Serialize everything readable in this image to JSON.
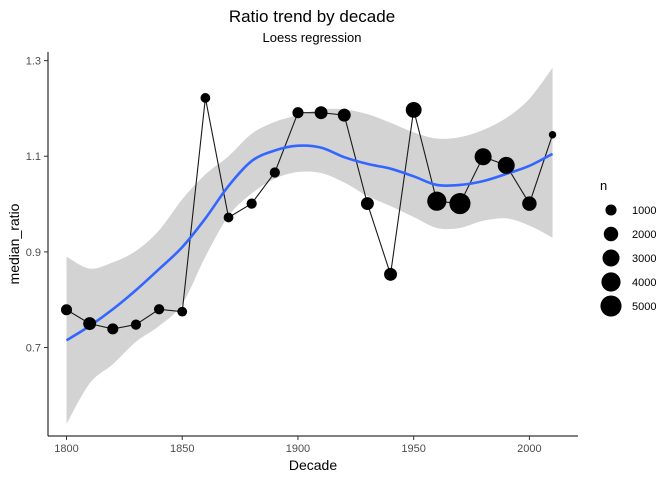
{
  "chart_data": {
    "type": "scatter",
    "title": "Ratio trend by decade",
    "subtitle": "Loess regression",
    "xlabel": "Decade",
    "ylabel": "median_ratio",
    "xlim": [
      1792,
      2021
    ],
    "ylim": [
      0.515,
      1.318
    ],
    "x_ticks": [
      1800,
      1850,
      1900,
      1950,
      2000
    ],
    "y_ticks": [
      0.7,
      0.9,
      1.1,
      1.3
    ],
    "x_tick_labels": [
      "1800",
      "1850",
      "1900",
      "1950",
      "2000"
    ],
    "y_tick_labels": [
      "0.7",
      "0.9",
      "1.1",
      "1.3"
    ],
    "grid": false,
    "points": [
      {
        "x": 1800,
        "y": 0.779,
        "n": 1000
      },
      {
        "x": 1810,
        "y": 0.75,
        "n": 1500
      },
      {
        "x": 1820,
        "y": 0.739,
        "n": 1000
      },
      {
        "x": 1830,
        "y": 0.748,
        "n": 800
      },
      {
        "x": 1840,
        "y": 0.78,
        "n": 800
      },
      {
        "x": 1850,
        "y": 0.775,
        "n": 700
      },
      {
        "x": 1860,
        "y": 1.222,
        "n": 700
      },
      {
        "x": 1870,
        "y": 0.972,
        "n": 700
      },
      {
        "x": 1880,
        "y": 1.001,
        "n": 800
      },
      {
        "x": 1890,
        "y": 1.066,
        "n": 800
      },
      {
        "x": 1900,
        "y": 1.191,
        "n": 1000
      },
      {
        "x": 1910,
        "y": 1.191,
        "n": 1500
      },
      {
        "x": 1920,
        "y": 1.186,
        "n": 1500
      },
      {
        "x": 1930,
        "y": 1.001,
        "n": 1500
      },
      {
        "x": 1940,
        "y": 0.853,
        "n": 1500
      },
      {
        "x": 1950,
        "y": 1.197,
        "n": 2500
      },
      {
        "x": 1960,
        "y": 1.006,
        "n": 4000
      },
      {
        "x": 1970,
        "y": 1.001,
        "n": 5000
      },
      {
        "x": 1980,
        "y": 1.099,
        "n": 3000
      },
      {
        "x": 1990,
        "y": 1.081,
        "n": 3000
      },
      {
        "x": 2000,
        "y": 1.001,
        "n": 2000
      },
      {
        "x": 2010,
        "y": 1.145,
        "n": 300
      }
    ],
    "smooth": {
      "method": "loess",
      "color": "#3366FF",
      "fit": [
        {
          "x": 1800,
          "y": 0.715,
          "lo": 0.54,
          "hi": 0.89
        },
        {
          "x": 1810,
          "y": 0.745,
          "lo": 0.625,
          "hi": 0.865
        },
        {
          "x": 1820,
          "y": 0.78,
          "lo": 0.665,
          "hi": 0.878
        },
        {
          "x": 1830,
          "y": 0.82,
          "lo": 0.712,
          "hi": 0.902
        },
        {
          "x": 1840,
          "y": 0.864,
          "lo": 0.745,
          "hi": 0.945
        },
        {
          "x": 1850,
          "y": 0.91,
          "lo": 0.791,
          "hi": 1.01
        },
        {
          "x": 1860,
          "y": 0.97,
          "lo": 0.89,
          "hi": 1.062
        },
        {
          "x": 1870,
          "y": 1.038,
          "lo": 0.975,
          "hi": 1.1
        },
        {
          "x": 1880,
          "y": 1.09,
          "lo": 1.022,
          "hi": 1.147
        },
        {
          "x": 1890,
          "y": 1.112,
          "lo": 1.053,
          "hi": 1.172
        },
        {
          "x": 1900,
          "y": 1.122,
          "lo": 1.067,
          "hi": 1.186
        },
        {
          "x": 1910,
          "y": 1.118,
          "lo": 1.065,
          "hi": 1.198
        },
        {
          "x": 1920,
          "y": 1.098,
          "lo": 1.045,
          "hi": 1.198
        },
        {
          "x": 1930,
          "y": 1.084,
          "lo": 1.017,
          "hi": 1.188
        },
        {
          "x": 1940,
          "y": 1.074,
          "lo": 0.996,
          "hi": 1.17
        },
        {
          "x": 1950,
          "y": 1.058,
          "lo": 0.973,
          "hi": 1.15
        },
        {
          "x": 1960,
          "y": 1.04,
          "lo": 0.95,
          "hi": 1.137
        },
        {
          "x": 1970,
          "y": 1.04,
          "lo": 0.95,
          "hi": 1.14
        },
        {
          "x": 1980,
          "y": 1.048,
          "lo": 0.965,
          "hi": 1.155
        },
        {
          "x": 1990,
          "y": 1.063,
          "lo": 0.97,
          "hi": 1.18
        },
        {
          "x": 2000,
          "y": 1.08,
          "lo": 0.955,
          "hi": 1.22
        },
        {
          "x": 2010,
          "y": 1.105,
          "lo": 0.93,
          "hi": 1.285
        }
      ]
    },
    "legend": {
      "title": "n",
      "position": "right",
      "entries": [
        {
          "label": "1000",
          "n": 1000
        },
        {
          "label": "2000",
          "n": 2000
        },
        {
          "label": "3000",
          "n": 3000
        },
        {
          "label": "4000",
          "n": 4000
        },
        {
          "label": "5000",
          "n": 5000
        }
      ]
    },
    "colors": {
      "points": "#000000",
      "line": "#3366FF",
      "ribbon": "#D3D3D3",
      "connector": "#1a1a1a"
    }
  }
}
